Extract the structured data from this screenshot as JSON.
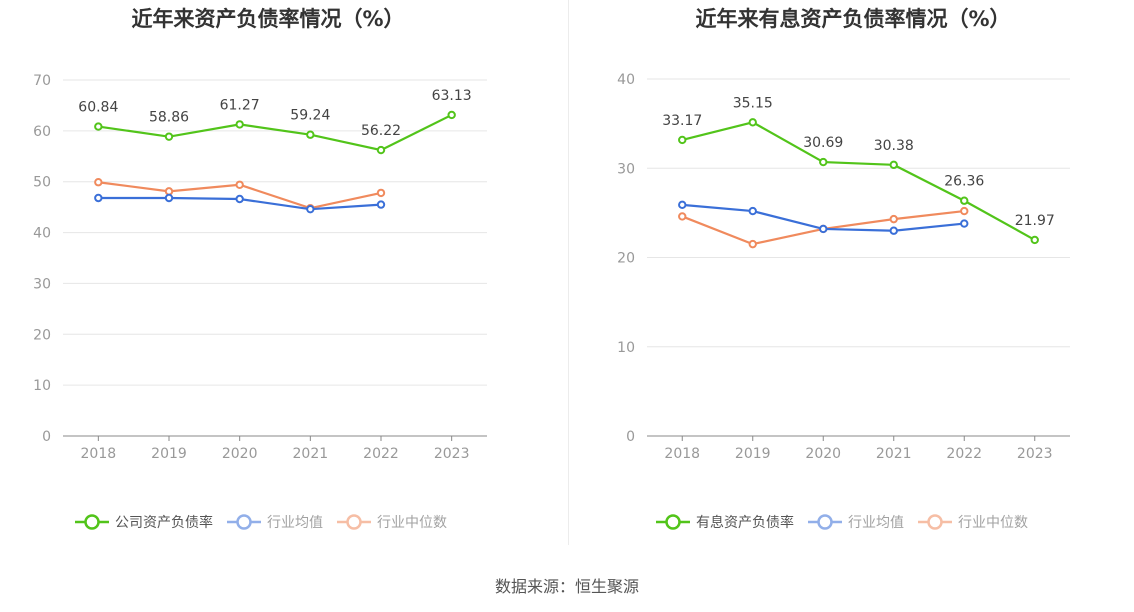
{
  "charts": {
    "left": {
      "colors": {
        "company": "#52c41a",
        "avg": "#3a6fd8",
        "median": "#f08a5d"
      },
      "chart_data": {
        "type": "line",
        "title": "近年来资产负债率情况（%）",
        "categories": [
          "2018",
          "2019",
          "2020",
          "2021",
          "2022",
          "2023"
        ],
        "ylim": [
          0,
          70
        ],
        "yticks": [
          "0",
          "10",
          "20",
          "30",
          "40",
          "50",
          "60",
          "70"
        ],
        "series": [
          {
            "name": "公司资产负债率",
            "key": "company",
            "values": [
              60.84,
              58.86,
              61.27,
              59.24,
              56.22,
              63.13
            ],
            "labels": [
              "60.84",
              "58.86",
              "61.27",
              "59.24",
              "56.22",
              "63.13"
            ]
          },
          {
            "name": "行业均值",
            "key": "avg",
            "values": [
              46.8,
              46.8,
              46.6,
              44.6,
              45.5,
              null
            ]
          },
          {
            "name": "行业中位数",
            "key": "median",
            "values": [
              49.9,
              48.1,
              49.4,
              44.8,
              47.8,
              null
            ]
          }
        ],
        "legend": "bottom",
        "grid": true
      }
    },
    "right": {
      "colors": {
        "company": "#52c41a",
        "avg": "#3a6fd8",
        "median": "#f08a5d"
      },
      "chart_data": {
        "type": "line",
        "title": "近年来有息资产负债率情况（%）",
        "categories": [
          "2018",
          "2019",
          "2020",
          "2021",
          "2022",
          "2023"
        ],
        "ylim": [
          0,
          40
        ],
        "yticks": [
          "0",
          "10",
          "20",
          "30",
          "40"
        ],
        "series": [
          {
            "name": "有息资产负债率",
            "key": "company",
            "values": [
              33.17,
              35.15,
              30.69,
              30.38,
              26.36,
              21.97
            ],
            "labels": [
              "33.17",
              "35.15",
              "30.69",
              "30.38",
              "26.36",
              "21.97"
            ]
          },
          {
            "name": "行业均值",
            "key": "avg",
            "values": [
              25.9,
              25.2,
              23.2,
              23.0,
              23.8,
              null
            ]
          },
          {
            "name": "行业中位数",
            "key": "median",
            "values": [
              24.6,
              21.5,
              23.2,
              24.3,
              25.2,
              null
            ]
          }
        ],
        "legend": "bottom",
        "grid": true
      }
    }
  },
  "source": "数据来源：恒生聚源"
}
